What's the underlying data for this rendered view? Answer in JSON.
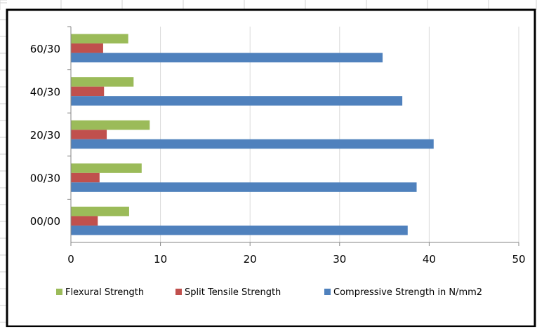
{
  "chart_data": {
    "type": "bar",
    "orientation": "horizontal",
    "categories": [
      "00/00",
      "00/30",
      "20/30",
      "40/30",
      "60/30"
    ],
    "series": [
      {
        "name": "Flexural Strength",
        "color": "#9bbb59",
        "values": [
          6.5,
          7.9,
          8.8,
          7.0,
          6.4
        ]
      },
      {
        "name": "Split Tensile Strength",
        "color": "#c0504d",
        "values": [
          3.0,
          3.2,
          4.0,
          3.7,
          3.6
        ]
      },
      {
        "name": "Compressive Strength in N/mm2",
        "color": "#4f81bd",
        "values": [
          37.6,
          38.6,
          40.5,
          37.0,
          34.8
        ]
      }
    ],
    "x_ticks": [
      "0",
      "10",
      "20",
      "30",
      "40",
      "50"
    ],
    "xlim": [
      0,
      50
    ],
    "grid": true,
    "legend": "bottom"
  }
}
